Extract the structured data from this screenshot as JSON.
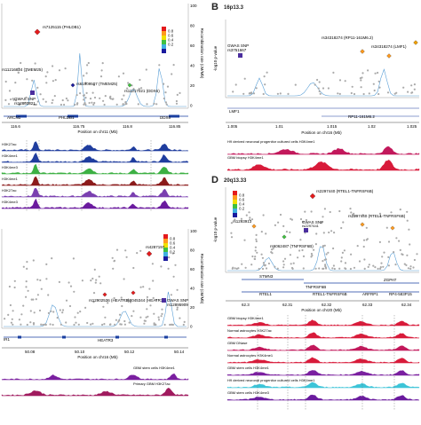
{
  "panels": {
    "b": {
      "label": "B",
      "region": "16p13.3"
    },
    "d": {
      "label": "D",
      "region": "20q13.33"
    }
  },
  "legend": {
    "r2_ticks": [
      "0.8",
      "0.6",
      "0.4",
      "0.2"
    ],
    "colors": [
      "#e41a1c",
      "#ff9a1f",
      "#f0e000",
      "#40c040",
      "#40b0e0",
      "#1a1a9e"
    ]
  },
  "panel_a": {
    "snps": [
      "rs7125115 (PHLDB1)",
      "rs11216824 (TMEM25)",
      "rs61909507 (TMEM25)",
      "rs11217021 (DDX6)",
      "rs12803321"
    ],
    "gwas": "GWAS SNP",
    "genes": [
      "ARCN1",
      "PHLDB1",
      "DDX6"
    ],
    "ticks": [
      "116.6",
      "116.75",
      "116.8",
      "116.85"
    ],
    "xlabel": "Position on chr11 (Mb)",
    "ylabel_right": "Recombination rate (cM/Mb)",
    "yticks_right": [
      "100",
      "80",
      "60",
      "40",
      "20",
      "0"
    ],
    "tracks": [
      "H3K27ac",
      "H3K4me1",
      "H3K4me3",
      "H3K4me1",
      "H3K27ac",
      "H3K4me3"
    ]
  },
  "panel_b": {
    "snps": [
      "rs34318274 (RP11-161M6.2)",
      "rs34318274 (LMF1)",
      "rs3751667"
    ],
    "gwas": "GWAS SNP",
    "genes": [
      "LMF1",
      "RP11-161M6.2"
    ],
    "ticks": [
      "1.005",
      "1.01",
      "1.015",
      "1.02",
      "1.025"
    ],
    "xlabel": "Position on chr16 (Mb)",
    "ylabel_left": "-log10 p-value",
    "tracks": [
      "H9 derived neuronal progenitor cultured cells H3K4me1",
      "GBM biopsy H3K4me1"
    ]
  },
  "panel_c": {
    "snps": [
      "rs4287197",
      "rs12902536 (HEATR3)",
      "rs8045344 (HEATR3)",
      "rs12895909"
    ],
    "gwas": "GWAS SNP",
    "genes": [
      "HEATR3",
      "IR1"
    ],
    "ticks": [
      "50.08",
      "50.10",
      "50.12",
      "50.14"
    ],
    "xlabel": "Position on chr16 (Mb)",
    "ylabel_right": "Recombination rate (cM/Mb)",
    "yticks_right": [
      "100",
      "80",
      "60",
      "40",
      "20",
      "0"
    ],
    "tracks": [
      "GBM stem cells H3K4me1",
      "Primary GBM H3K27ac"
    ]
  },
  "panel_d": {
    "snps": [
      "rs2297440 (RTEL1-TNFRSF6B)",
      "rs2297440 (RTEL1-TNFRSF6B)",
      "rs2297441",
      "rs6062487 (TNFRSF6B)",
      "rs1293913"
    ],
    "gwas": "GWAS SNP",
    "genes": [
      "STMN3",
      "TNFRSF6B",
      "RTEL1",
      "RTEL1-TNFRSF6B",
      "ARFRP1",
      "ZGPAT",
      "RP4-583P15"
    ],
    "ticks": [
      "62.3",
      "62.31",
      "62.32",
      "62.33",
      "62.34"
    ],
    "xlabel": "Position on chr20 (Mb)",
    "ylabel_left": "-log10 p-value",
    "tracks": [
      "GBM biopsy H3K4me1",
      "Normal astrocytes H3K27ac",
      "GBM DNase",
      "Normal astrocytes H3K4me1",
      "GBM stem cells H3K4me1",
      "H9 derived neuronal progenitor cultured cells H3K4me1",
      "GBM stem cells H3K4me3"
    ]
  }
}
